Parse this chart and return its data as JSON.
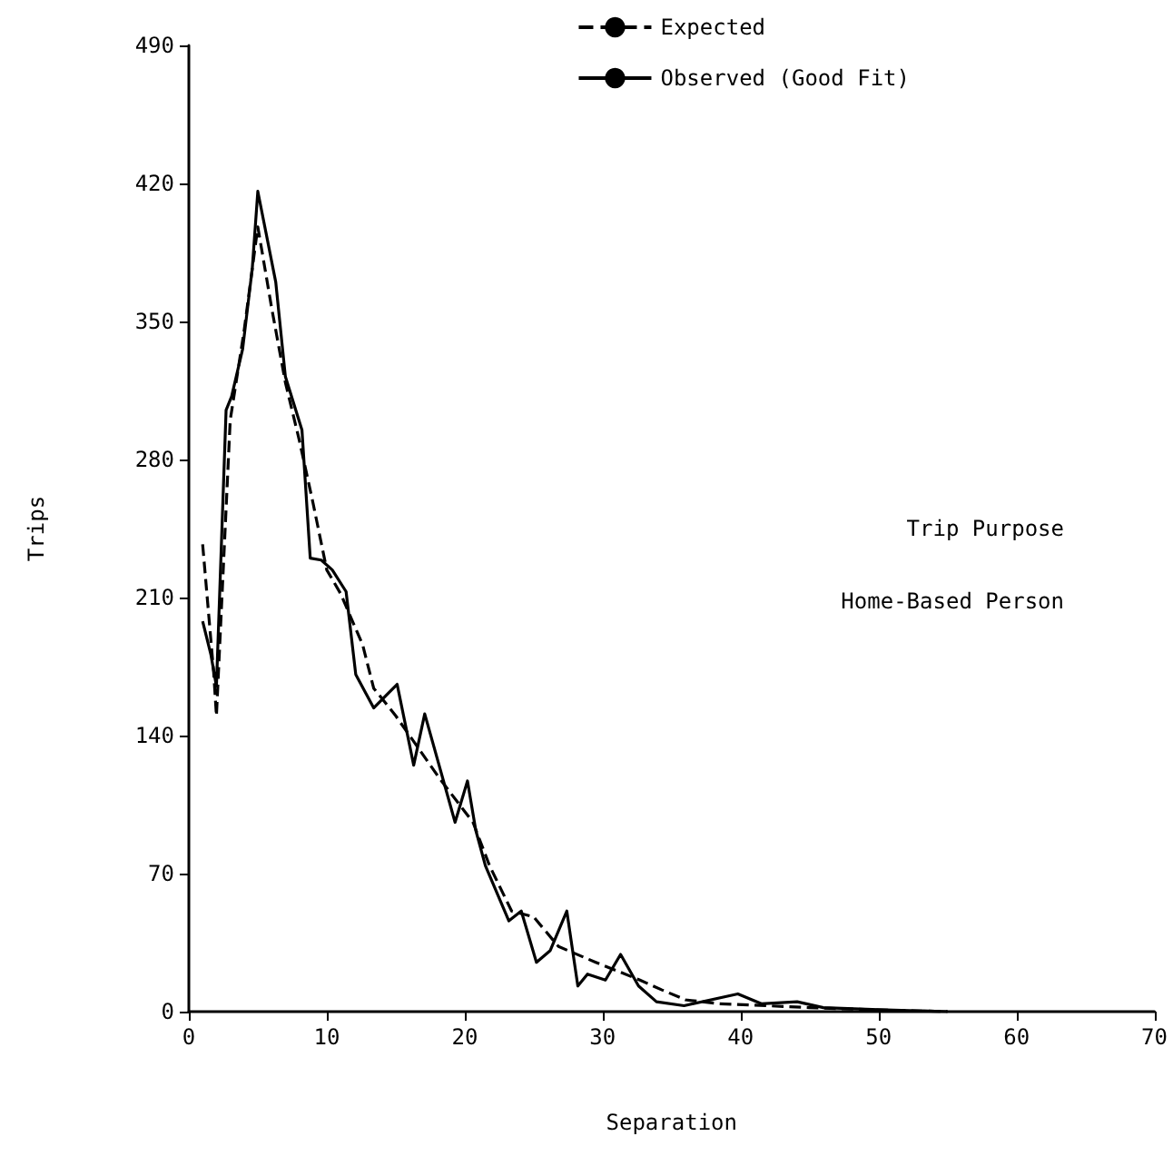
{
  "chart_data": {
    "type": "line",
    "xlabel": "Separation",
    "ylabel": "Trips",
    "xlim": [
      0,
      70
    ],
    "xticks": [
      0,
      10,
      20,
      30,
      40,
      50,
      60,
      70
    ],
    "ylim": [
      0,
      490
    ],
    "yticks": [
      0,
      70,
      140,
      210,
      280,
      350,
      420,
      490
    ],
    "grid": false,
    "legend": "top right",
    "annotations": [
      "Trip Purpose",
      "Home-Based Person"
    ],
    "series": [
      {
        "name": "Expected",
        "color": "#000000",
        "line_style": "dashed",
        "x": [
          1,
          1.8,
          2,
          3,
          4,
          5,
          6,
          7,
          8,
          9,
          10,
          11,
          12.6,
          13.4,
          15,
          16.7,
          18.2,
          20.6,
          21.8,
          23.4,
          25,
          26.8,
          29.5,
          32.7,
          34.3,
          36,
          38.4,
          41.9,
          45,
          49.4,
          55
        ],
        "values": [
          237,
          172,
          150,
          300,
          345,
          398,
          357,
          319,
          290,
          258,
          224,
          212,
          186,
          164,
          150,
          133,
          118,
          96,
          74,
          51,
          48,
          33,
          25,
          16,
          11,
          6,
          4,
          3,
          2,
          1,
          0
        ]
      },
      {
        "name": "Observed (Good Fit)",
        "color": "#000000",
        "line_style": "solid",
        "x": [
          1,
          1.6,
          2,
          2.7,
          3.1,
          3.9,
          4.6,
          5,
          6.3,
          7,
          8.2,
          8.8,
          9.6,
          10.4,
          11.4,
          12.1,
          13.4,
          15.1,
          16.3,
          17.1,
          19.3,
          20.2,
          20.8,
          21.5,
          23.2,
          24.1,
          25.2,
          26.2,
          27.4,
          28.2,
          28.9,
          30.2,
          31.3,
          32.6,
          33.9,
          35.9,
          39.8,
          41.5,
          44.1,
          46,
          50,
          55
        ],
        "values": [
          198,
          181,
          165,
          305,
          312,
          336,
          377,
          416,
          370,
          322,
          295,
          230,
          229,
          224,
          213,
          171,
          154,
          166,
          125,
          151,
          96,
          117,
          92,
          74,
          46,
          51,
          25,
          31,
          51,
          13,
          19,
          16,
          29,
          13,
          5,
          3,
          9,
          4,
          5,
          2,
          1,
          0
        ]
      }
    ]
  }
}
